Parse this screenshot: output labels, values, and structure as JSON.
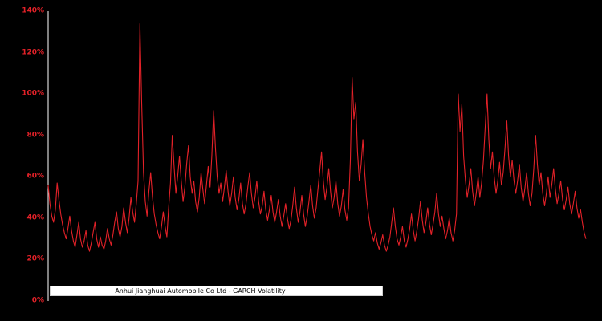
{
  "window": {
    "background": "#000000"
  },
  "style": {
    "line_color": "#e32128",
    "tick_color": "#e32128",
    "axis_color": "#ffffff",
    "legend_background": "#ffffff",
    "legend_text_color": "#000000"
  },
  "legend": {
    "label": "Anhui Jianghuai Automobile Co Ltd - GARCH Volatility"
  },
  "chart_data": {
    "type": "line",
    "title": "",
    "xlabel": "",
    "ylabel": "",
    "ylim": [
      0,
      140
    ],
    "yticks": [
      0,
      20,
      40,
      60,
      80,
      100,
      120,
      140
    ],
    "ytick_labels": [
      "0%",
      "20%",
      "40%",
      "60%",
      "80%",
      "100%",
      "120%",
      "140%"
    ],
    "x_tick_labels_visible": false,
    "grid": false,
    "legend_position": "lower-left",
    "series": [
      {
        "name": "Anhui Jianghuai Automobile Co Ltd - GARCH Volatility",
        "unit": "%",
        "values": [
          56,
          47,
          41,
          38,
          44,
          57,
          49,
          42,
          37,
          33,
          30,
          35,
          41,
          34,
          29,
          26,
          32,
          38,
          30,
          26,
          29,
          34,
          27,
          24,
          28,
          33,
          38,
          30,
          26,
          31,
          27,
          25,
          29,
          35,
          30,
          27,
          32,
          38,
          43,
          35,
          31,
          36,
          45,
          38,
          33,
          40,
          50,
          43,
          38,
          47,
          58,
          134,
          96,
          62,
          48,
          41,
          53,
          62,
          50,
          42,
          37,
          33,
          30,
          36,
          43,
          36,
          31,
          45,
          57,
          80,
          65,
          52,
          60,
          70,
          58,
          48,
          55,
          66,
          75,
          60,
          52,
          58,
          48,
          43,
          50,
          62,
          54,
          47,
          56,
          65,
          55,
          70,
          92,
          74,
          60,
          52,
          57,
          48,
          55,
          63,
          53,
          46,
          52,
          60,
          50,
          44,
          49,
          57,
          47,
          42,
          47,
          55,
          62,
          52,
          45,
          50,
          58,
          48,
          42,
          46,
          53,
          44,
          39,
          44,
          51,
          43,
          38,
          43,
          49,
          41,
          36,
          41,
          47,
          40,
          35,
          39,
          46,
          55,
          45,
          38,
          43,
          51,
          42,
          36,
          41,
          48,
          56,
          46,
          40,
          45,
          54,
          63,
          72,
          58,
          49,
          55,
          64,
          53,
          45,
          50,
          58,
          47,
          41,
          46,
          54,
          44,
          39,
          45,
          68,
          108,
          88,
          96,
          72,
          58,
          66,
          78,
          62,
          50,
          42,
          36,
          32,
          29,
          33,
          28,
          25,
          28,
          32,
          27,
          24,
          27,
          31,
          38,
          45,
          36,
          30,
          27,
          31,
          36,
          29,
          26,
          30,
          35,
          42,
          34,
          29,
          34,
          40,
          48,
          39,
          33,
          38,
          45,
          37,
          32,
          37,
          43,
          52,
          42,
          36,
          41,
          35,
          30,
          34,
          40,
          33,
          29,
          34,
          42,
          100,
          82,
          95,
          70,
          58,
          50,
          56,
          64,
          53,
          46,
          52,
          60,
          50,
          57,
          68,
          84,
          100,
          78,
          64,
          72,
          60,
          52,
          58,
          67,
          56,
          62,
          74,
          87,
          70,
          60,
          68,
          58,
          52,
          58,
          66,
          55,
          48,
          54,
          62,
          52,
          46,
          52,
          64,
          80,
          66,
          56,
          62,
          52,
          46,
          52,
          60,
          50,
          56,
          64,
          54,
          47,
          52,
          58,
          49,
          44,
          49,
          55,
          47,
          42,
          47,
          53,
          45,
          40,
          44,
          38,
          33,
          30
        ]
      }
    ]
  }
}
